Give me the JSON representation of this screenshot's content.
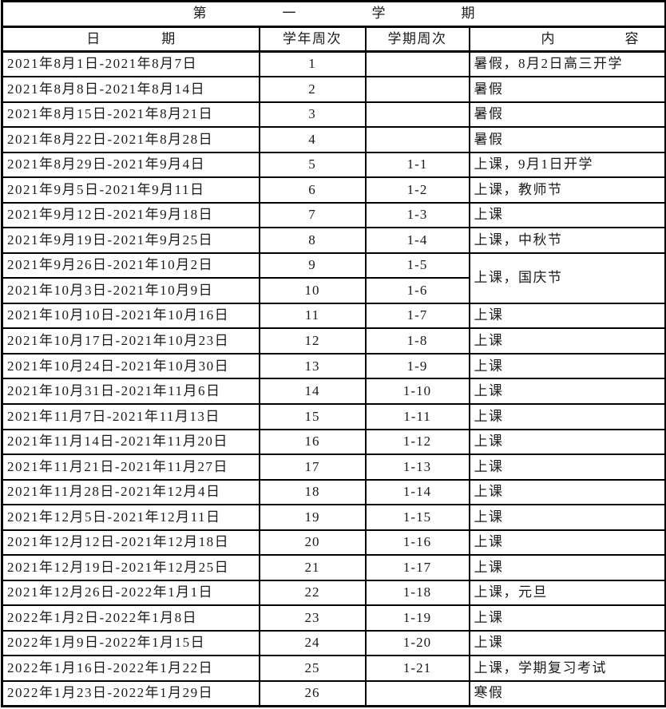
{
  "table": {
    "title": "第一学期",
    "columns": {
      "date": "日期",
      "year_week": "学年周次",
      "semester_week": "学期周次",
      "content": "内容"
    },
    "rows": [
      {
        "date": "2021年8月1日-2021年8月7日",
        "year_week": "1",
        "semester_week": "",
        "content": "暑假，8月2日高三开学"
      },
      {
        "date": "2021年8月8日-2021年8月14日",
        "year_week": "2",
        "semester_week": "",
        "content": "暑假"
      },
      {
        "date": "2021年8月15日-2021年8月21日",
        "year_week": "3",
        "semester_week": "",
        "content": "暑假"
      },
      {
        "date": "2021年8月22日-2021年8月28日",
        "year_week": "4",
        "semester_week": "",
        "content": "暑假"
      },
      {
        "date": "2021年8月29日-2021年9月4日",
        "year_week": "5",
        "semester_week": "1-1",
        "content": "上课，9月1日开学"
      },
      {
        "date": "2021年9月5日-2021年9月11日",
        "year_week": "6",
        "semester_week": "1-2",
        "content": "上课，教师节"
      },
      {
        "date": "2021年9月12日-2021年9月18日",
        "year_week": "7",
        "semester_week": "1-3",
        "content": "上课"
      },
      {
        "date": "2021年9月19日-2021年9月25日",
        "year_week": "8",
        "semester_week": "1-4",
        "content": "上课，中秋节"
      },
      {
        "date": "2021年9月26日-2021年10月2日",
        "year_week": "9",
        "semester_week": "1-5",
        "content": "上课，国庆节",
        "content_rowspan": 2
      },
      {
        "date": "2021年10月3日-2021年10月9日",
        "year_week": "10",
        "semester_week": "1-6",
        "content": null
      },
      {
        "date": "2021年10月10日-2021年10月16日",
        "year_week": "11",
        "semester_week": "1-7",
        "content": "上课"
      },
      {
        "date": "2021年10月17日-2021年10月23日",
        "year_week": "12",
        "semester_week": "1-8",
        "content": "上课"
      },
      {
        "date": "2021年10月24日-2021年10月30日",
        "year_week": "13",
        "semester_week": "1-9",
        "content": "上课"
      },
      {
        "date": "2021年10月31日-2021年11月6日",
        "year_week": "14",
        "semester_week": "1-10",
        "content": "上课"
      },
      {
        "date": "2021年11月7日-2021年11月13日",
        "year_week": "15",
        "semester_week": "1-11",
        "content": "上课"
      },
      {
        "date": "2021年11月14日-2021年11月20日",
        "year_week": "16",
        "semester_week": "1-12",
        "content": "上课"
      },
      {
        "date": "2021年11月21日-2021年11月27日",
        "year_week": "17",
        "semester_week": "1-13",
        "content": "上课"
      },
      {
        "date": "2021年11月28日-2021年12月4日",
        "year_week": "18",
        "semester_week": "1-14",
        "content": "上课"
      },
      {
        "date": "2021年12月5日-2021年12月11日",
        "year_week": "19",
        "semester_week": "1-15",
        "content": "上课"
      },
      {
        "date": "2021年12月12日-2021年12月18日",
        "year_week": "20",
        "semester_week": "1-16",
        "content": "上课"
      },
      {
        "date": "2021年12月19日-2021年12月25日",
        "year_week": "21",
        "semester_week": "1-17",
        "content": "上课"
      },
      {
        "date": "2021年12月26日-2022年1月1日",
        "year_week": "22",
        "semester_week": "1-18",
        "content": "上课，元旦"
      },
      {
        "date": "2022年1月2日-2022年1月8日",
        "year_week": "23",
        "semester_week": "1-19",
        "content": "上课"
      },
      {
        "date": "2022年1月9日-2022年1月15日",
        "year_week": "24",
        "semester_week": "1-20",
        "content": "上课"
      },
      {
        "date": "2022年1月16日-2022年1月22日",
        "year_week": "25",
        "semester_week": "1-21",
        "content": "上课，学期复习考试"
      },
      {
        "date": "2022年1月23日-2022年1月29日",
        "year_week": "26",
        "semester_week": "",
        "content": "寒假"
      }
    ]
  }
}
